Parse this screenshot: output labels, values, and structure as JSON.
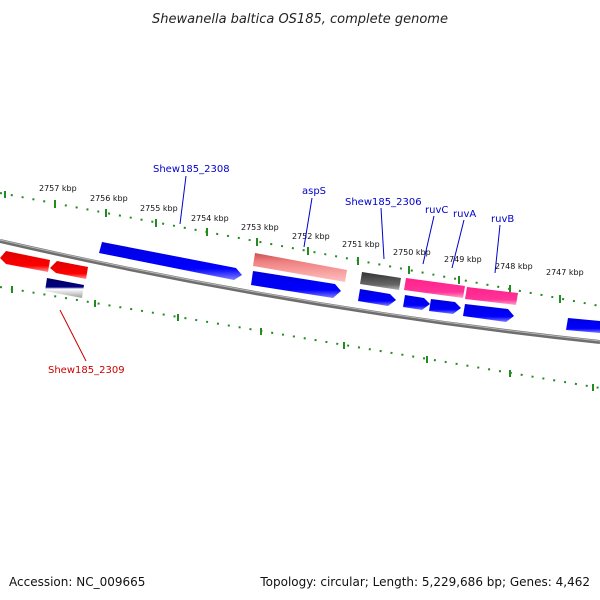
{
  "title": "Shewanella baltica OS185, complete genome",
  "ticks": [
    {
      "label": "2757 kbp"
    },
    {
      "label": "2756 kbp"
    },
    {
      "label": "2755 kbp"
    },
    {
      "label": "2754 kbp"
    },
    {
      "label": "2753 kbp"
    },
    {
      "label": "2752 kbp"
    },
    {
      "label": "2751 kbp"
    },
    {
      "label": "2750 kbp"
    },
    {
      "label": "2749 kbp"
    },
    {
      "label": "2748 kbp"
    },
    {
      "label": "2747 kbp"
    }
  ],
  "gene_labels": [
    {
      "text": "Shew185_2308",
      "color": "#0000cc"
    },
    {
      "text": "aspS",
      "color": "#0000cc"
    },
    {
      "text": "Shew185_2306",
      "color": "#0000cc"
    },
    {
      "text": "ruvC",
      "color": "#0000cc"
    },
    {
      "text": "ruvA",
      "color": "#0000cc"
    },
    {
      "text": "ruvB",
      "color": "#0000cc"
    },
    {
      "text": "Shew185_2309",
      "color": "#cc0000"
    }
  ],
  "colors": {
    "forward_gene": "#0000ee",
    "reverse_gene": "#ee0000",
    "rna_gene": "#ee3399",
    "pseudo_gene": "#f08080",
    "other_gene": "#555555",
    "tick_marks": "#228b22",
    "backbone": "#808080"
  },
  "footer": {
    "accession": "Accession: NC_009665",
    "summary": "Topology: circular; Length: 5,229,686 bp; Genes: 4,462"
  }
}
